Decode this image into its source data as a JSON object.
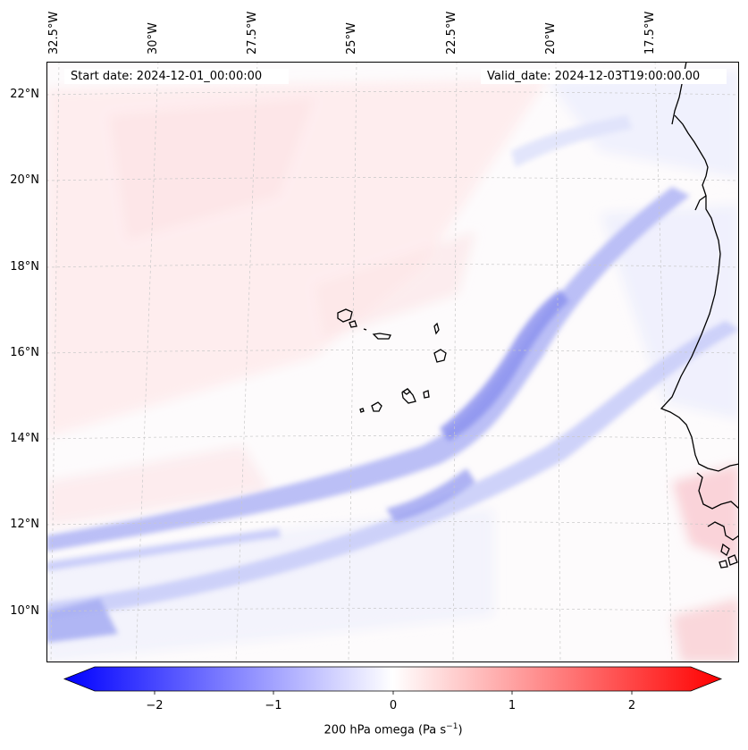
{
  "map": {
    "start_date": "Start date: 2024-12-01_00:00:00",
    "valid_date": "Valid_date: 2024-12-03T19:00:00.00",
    "lon_labels": [
      "32.5°W",
      "30°W",
      "27.5°W",
      "25°W",
      "22.5°W",
      "20°W",
      "17.5°W"
    ],
    "lat_labels": [
      "22°N",
      "20°N",
      "18°N",
      "16°N",
      "14°N",
      "12°N",
      "10°N"
    ],
    "features": [
      "cape-verde-islands",
      "west-africa-coastline"
    ]
  },
  "colorbar": {
    "label": "200 hPa omega (Pa s",
    "label_exponent": "−1",
    "label_end": ")",
    "ticks": [
      "−2",
      "−1",
      "0",
      "1",
      "2"
    ],
    "min": -2.5,
    "max": 2.5,
    "colors": {
      "negative": "#0000ff",
      "zero": "#ffffff",
      "positive": "#ff0000"
    }
  }
}
